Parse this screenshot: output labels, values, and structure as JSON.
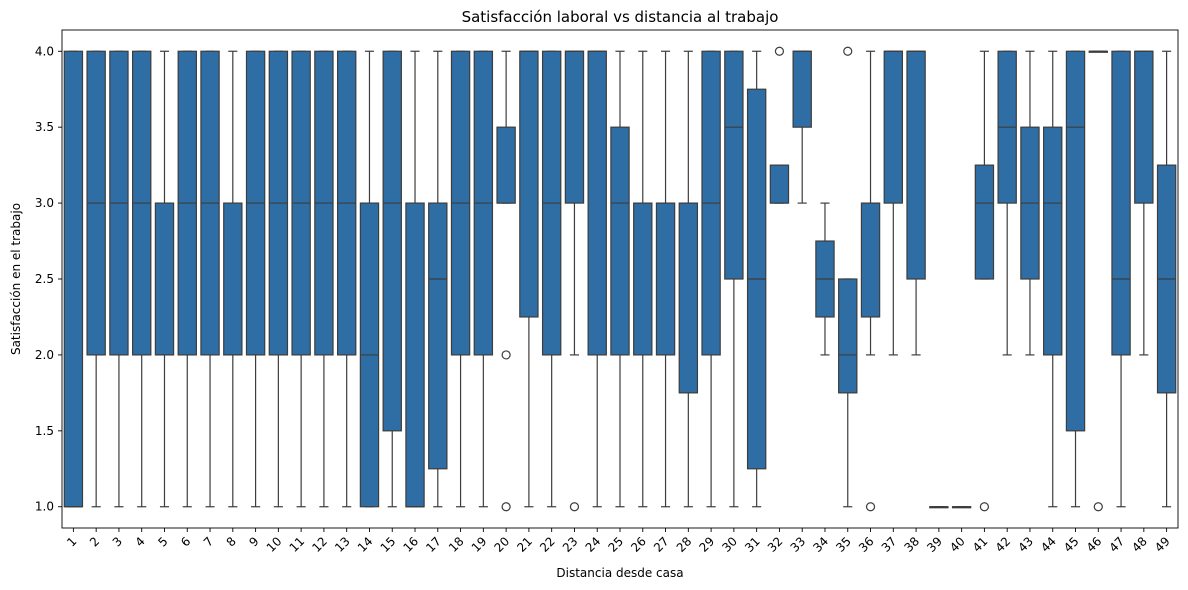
{
  "chart_data": {
    "type": "box",
    "title": "Satisfacción laboral vs distancia al trabajo",
    "xlabel": "Distancia desde casa",
    "ylabel": "Satisfacción en el trabajo",
    "ylim": [
      0.86,
      4.14
    ],
    "yticks": [
      "1.0",
      "1.5",
      "2.0",
      "2.5",
      "3.0",
      "3.5",
      "4.0"
    ],
    "grid": false,
    "legend": "none",
    "colors": {
      "box_fill": "#2e6ea4",
      "box_edge": "#3d3d3d",
      "whisker": "#3d3d3d"
    },
    "categories": [
      "1",
      "2",
      "3",
      "4",
      "5",
      "6",
      "7",
      "8",
      "9",
      "10",
      "11",
      "12",
      "13",
      "14",
      "15",
      "16",
      "17",
      "18",
      "19",
      "20",
      "21",
      "22",
      "23",
      "24",
      "25",
      "26",
      "27",
      "28",
      "29",
      "30",
      "31",
      "32",
      "33",
      "34",
      "35",
      "36",
      "37",
      "38",
      "39",
      "40",
      "41",
      "42",
      "43",
      "44",
      "45",
      "46",
      "47",
      "48",
      "49"
    ],
    "boxes": [
      {
        "q1": 1.0,
        "median": 1.0,
        "q3": 4.0,
        "whislo": 1.0,
        "whishi": 4.0,
        "outliers": []
      },
      {
        "q1": 2.0,
        "median": 3.0,
        "q3": 4.0,
        "whislo": 1.0,
        "whishi": 4.0,
        "outliers": []
      },
      {
        "q1": 2.0,
        "median": 3.0,
        "q3": 4.0,
        "whislo": 1.0,
        "whishi": 4.0,
        "outliers": []
      },
      {
        "q1": 2.0,
        "median": 3.0,
        "q3": 4.0,
        "whislo": 1.0,
        "whishi": 4.0,
        "outliers": []
      },
      {
        "q1": 2.0,
        "median": 2.0,
        "q3": 3.0,
        "whislo": 1.0,
        "whishi": 4.0,
        "outliers": []
      },
      {
        "q1": 2.0,
        "median": 3.0,
        "q3": 4.0,
        "whislo": 1.0,
        "whishi": 4.0,
        "outliers": []
      },
      {
        "q1": 2.0,
        "median": 3.0,
        "q3": 4.0,
        "whislo": 1.0,
        "whishi": 4.0,
        "outliers": []
      },
      {
        "q1": 2.0,
        "median": 2.0,
        "q3": 3.0,
        "whislo": 1.0,
        "whishi": 4.0,
        "outliers": []
      },
      {
        "q1": 2.0,
        "median": 3.0,
        "q3": 4.0,
        "whislo": 1.0,
        "whishi": 4.0,
        "outliers": []
      },
      {
        "q1": 2.0,
        "median": 3.0,
        "q3": 4.0,
        "whislo": 1.0,
        "whishi": 4.0,
        "outliers": []
      },
      {
        "q1": 2.0,
        "median": 3.0,
        "q3": 4.0,
        "whislo": 1.0,
        "whishi": 4.0,
        "outliers": []
      },
      {
        "q1": 2.0,
        "median": 3.0,
        "q3": 4.0,
        "whislo": 1.0,
        "whishi": 4.0,
        "outliers": []
      },
      {
        "q1": 2.0,
        "median": 3.0,
        "q3": 4.0,
        "whislo": 1.0,
        "whishi": 4.0,
        "outliers": []
      },
      {
        "q1": 1.0,
        "median": 2.0,
        "q3": 3.0,
        "whislo": 1.0,
        "whishi": 4.0,
        "outliers": []
      },
      {
        "q1": 1.5,
        "median": 3.0,
        "q3": 4.0,
        "whislo": 1.0,
        "whishi": 4.0,
        "outliers": []
      },
      {
        "q1": 1.0,
        "median": 1.0,
        "q3": 3.0,
        "whislo": 1.0,
        "whishi": 4.0,
        "outliers": []
      },
      {
        "q1": 1.25,
        "median": 2.5,
        "q3": 3.0,
        "whislo": 1.0,
        "whishi": 4.0,
        "outliers": []
      },
      {
        "q1": 2.0,
        "median": 3.0,
        "q3": 4.0,
        "whislo": 1.0,
        "whishi": 4.0,
        "outliers": []
      },
      {
        "q1": 2.0,
        "median": 3.0,
        "q3": 4.0,
        "whislo": 1.0,
        "whishi": 4.0,
        "outliers": []
      },
      {
        "q1": 3.0,
        "median": 3.0,
        "q3": 3.5,
        "whislo": 3.0,
        "whishi": 4.0,
        "outliers": [
          2.0,
          1.0
        ]
      },
      {
        "q1": 2.25,
        "median": 4.0,
        "q3": 4.0,
        "whislo": 1.0,
        "whishi": 4.0,
        "outliers": []
      },
      {
        "q1": 2.0,
        "median": 3.0,
        "q3": 4.0,
        "whislo": 1.0,
        "whishi": 4.0,
        "outliers": []
      },
      {
        "q1": 3.0,
        "median": 4.0,
        "q3": 4.0,
        "whislo": 2.0,
        "whishi": 4.0,
        "outliers": [
          1.0
        ]
      },
      {
        "q1": 2.0,
        "median": 4.0,
        "q3": 4.0,
        "whislo": 1.0,
        "whishi": 4.0,
        "outliers": []
      },
      {
        "q1": 2.0,
        "median": 3.0,
        "q3": 3.5,
        "whislo": 1.0,
        "whishi": 4.0,
        "outliers": []
      },
      {
        "q1": 2.0,
        "median": 3.0,
        "q3": 3.0,
        "whislo": 1.0,
        "whishi": 4.0,
        "outliers": []
      },
      {
        "q1": 2.0,
        "median": 3.0,
        "q3": 3.0,
        "whislo": 1.0,
        "whishi": 4.0,
        "outliers": []
      },
      {
        "q1": 1.75,
        "median": 3.0,
        "q3": 3.0,
        "whislo": 1.0,
        "whishi": 4.0,
        "outliers": []
      },
      {
        "q1": 2.0,
        "median": 3.0,
        "q3": 4.0,
        "whislo": 1.0,
        "whishi": 4.0,
        "outliers": []
      },
      {
        "q1": 2.5,
        "median": 3.5,
        "q3": 4.0,
        "whislo": 1.0,
        "whishi": 4.0,
        "outliers": []
      },
      {
        "q1": 1.25,
        "median": 2.5,
        "q3": 3.75,
        "whislo": 1.0,
        "whishi": 4.0,
        "outliers": []
      },
      {
        "q1": 3.0,
        "median": 3.0,
        "q3": 3.25,
        "whislo": 3.0,
        "whishi": 3.25,
        "outliers": [
          4.0
        ]
      },
      {
        "q1": 3.5,
        "median": 4.0,
        "q3": 4.0,
        "whislo": 3.0,
        "whishi": 4.0,
        "outliers": []
      },
      {
        "q1": 2.25,
        "median": 2.5,
        "q3": 2.75,
        "whislo": 2.0,
        "whishi": 3.0,
        "outliers": []
      },
      {
        "q1": 1.75,
        "median": 2.0,
        "q3": 2.5,
        "whislo": 1.0,
        "whishi": 2.5,
        "outliers": [
          4.0
        ]
      },
      {
        "q1": 2.25,
        "median": 3.0,
        "q3": 3.0,
        "whislo": 2.0,
        "whishi": 4.0,
        "outliers": [
          1.0
        ]
      },
      {
        "q1": 3.0,
        "median": 4.0,
        "q3": 4.0,
        "whislo": 2.0,
        "whishi": 4.0,
        "outliers": []
      },
      {
        "q1": 2.5,
        "median": 4.0,
        "q3": 4.0,
        "whislo": 2.0,
        "whishi": 4.0,
        "outliers": []
      },
      {
        "q1": 1.0,
        "median": 1.0,
        "q3": 1.0,
        "whislo": 1.0,
        "whishi": 1.0,
        "outliers": []
      },
      {
        "q1": 1.0,
        "median": 1.0,
        "q3": 1.0,
        "whislo": 1.0,
        "whishi": 1.0,
        "outliers": []
      },
      {
        "q1": 2.5,
        "median": 3.0,
        "q3": 3.25,
        "whislo": 2.5,
        "whishi": 4.0,
        "outliers": [
          1.0
        ]
      },
      {
        "q1": 3.0,
        "median": 3.5,
        "q3": 4.0,
        "whislo": 2.0,
        "whishi": 4.0,
        "outliers": []
      },
      {
        "q1": 2.5,
        "median": 3.0,
        "q3": 3.5,
        "whislo": 2.0,
        "whishi": 4.0,
        "outliers": []
      },
      {
        "q1": 2.0,
        "median": 3.0,
        "q3": 3.5,
        "whislo": 1.0,
        "whishi": 4.0,
        "outliers": []
      },
      {
        "q1": 1.5,
        "median": 3.5,
        "q3": 4.0,
        "whislo": 1.0,
        "whishi": 4.0,
        "outliers": []
      },
      {
        "q1": 4.0,
        "median": 4.0,
        "q3": 4.0,
        "whislo": 4.0,
        "whishi": 4.0,
        "outliers": [
          1.0
        ]
      },
      {
        "q1": 2.0,
        "median": 2.5,
        "q3": 4.0,
        "whislo": 1.0,
        "whishi": 4.0,
        "outliers": []
      },
      {
        "q1": 3.0,
        "median": 4.0,
        "q3": 4.0,
        "whislo": 2.0,
        "whishi": 4.0,
        "outliers": []
      },
      {
        "q1": 1.75,
        "median": 2.5,
        "q3": 3.25,
        "whislo": 1.0,
        "whishi": 4.0,
        "outliers": []
      }
    ]
  }
}
